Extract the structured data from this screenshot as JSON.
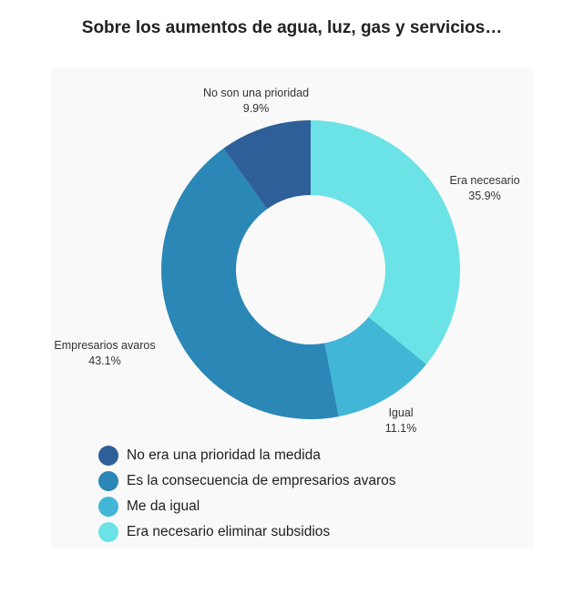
{
  "chart_data": {
    "type": "pie",
    "variant": "donut",
    "title": "Sobre los aumentos de agua, luz, gas y servicios…",
    "slices": [
      {
        "label": "Era necesario",
        "value": 35.9,
        "display": "35.9%",
        "legend": "Era necesario eliminar subsidios",
        "color": "#6ae2e6"
      },
      {
        "label": "Igual",
        "value": 11.1,
        "display": "11.1%",
        "legend": "Me da igual",
        "color": "#41b6d6"
      },
      {
        "label": "Empresarios avaros",
        "value": 43.1,
        "display": "43.1%",
        "legend": "Es la consecuencia de empresarios avaros",
        "color": "#2b87b6"
      },
      {
        "label": "No son una prioridad",
        "value": 9.9,
        "display": "9.9%",
        "legend": "No era una prioridad la medida",
        "color": "#2e5f99"
      }
    ],
    "legend_order": [
      3,
      2,
      1,
      0
    ],
    "legend_position": "bottom-left"
  }
}
